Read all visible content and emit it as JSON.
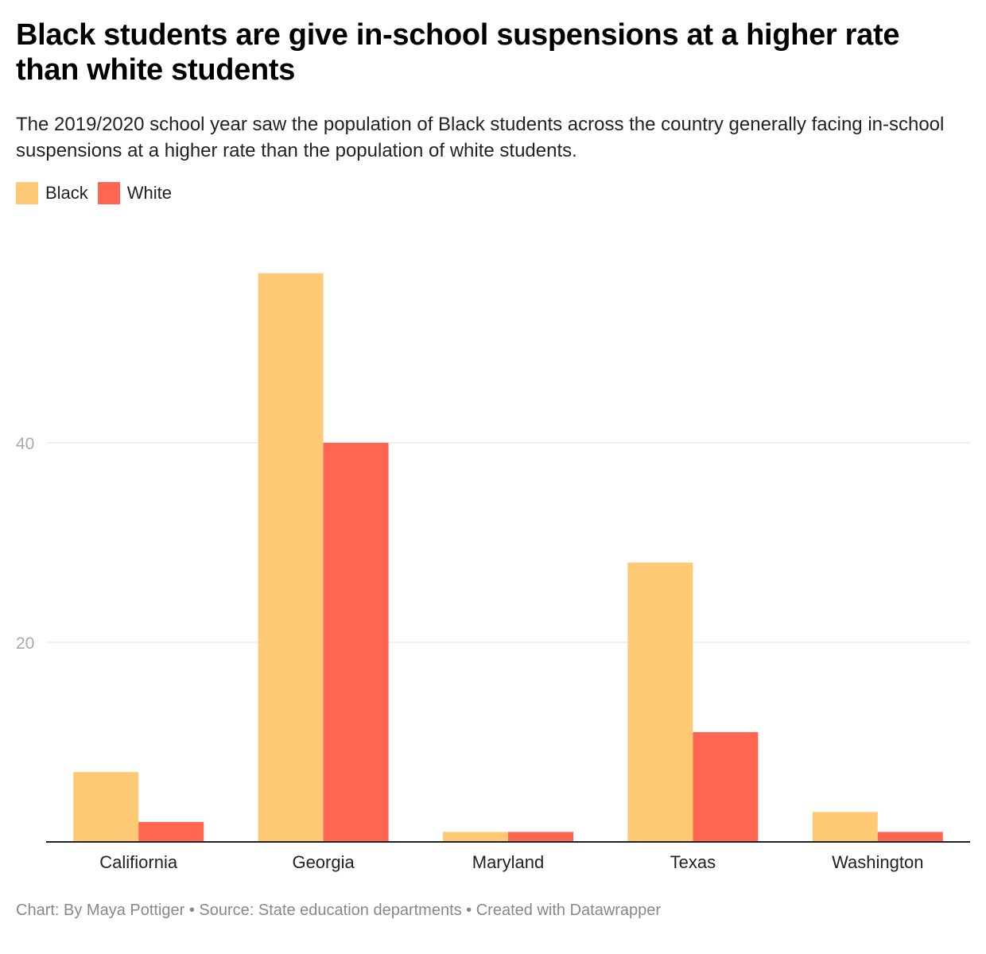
{
  "chart_data": {
    "type": "bar",
    "title": "Black students are give in-school suspensions at a higher rate than white students",
    "subtitle": "The 2019/2020 school year saw the population of Black students across the country generally facing in-school suspensions at a higher rate than the population of white students.",
    "categories": [
      "Califiornia",
      "Georgia",
      "Maryland",
      "Texas",
      "Washington"
    ],
    "series": [
      {
        "name": "Black",
        "color": "#fdc975",
        "values": [
          7,
          57,
          1,
          28,
          3
        ]
      },
      {
        "name": "White",
        "color": "#ff6550",
        "values": [
          2,
          40,
          1,
          11,
          1
        ]
      }
    ],
    "yticks": [
      20,
      40
    ],
    "ytick_labels": [
      "20",
      "40"
    ],
    "ylim": [
      0,
      60
    ],
    "grid": true,
    "legend_position": "top-left",
    "xlabel": "",
    "ylabel": "",
    "footer": "Chart: By Maya Pottiger • Source: State education departments • Created with Datawrapper"
  }
}
